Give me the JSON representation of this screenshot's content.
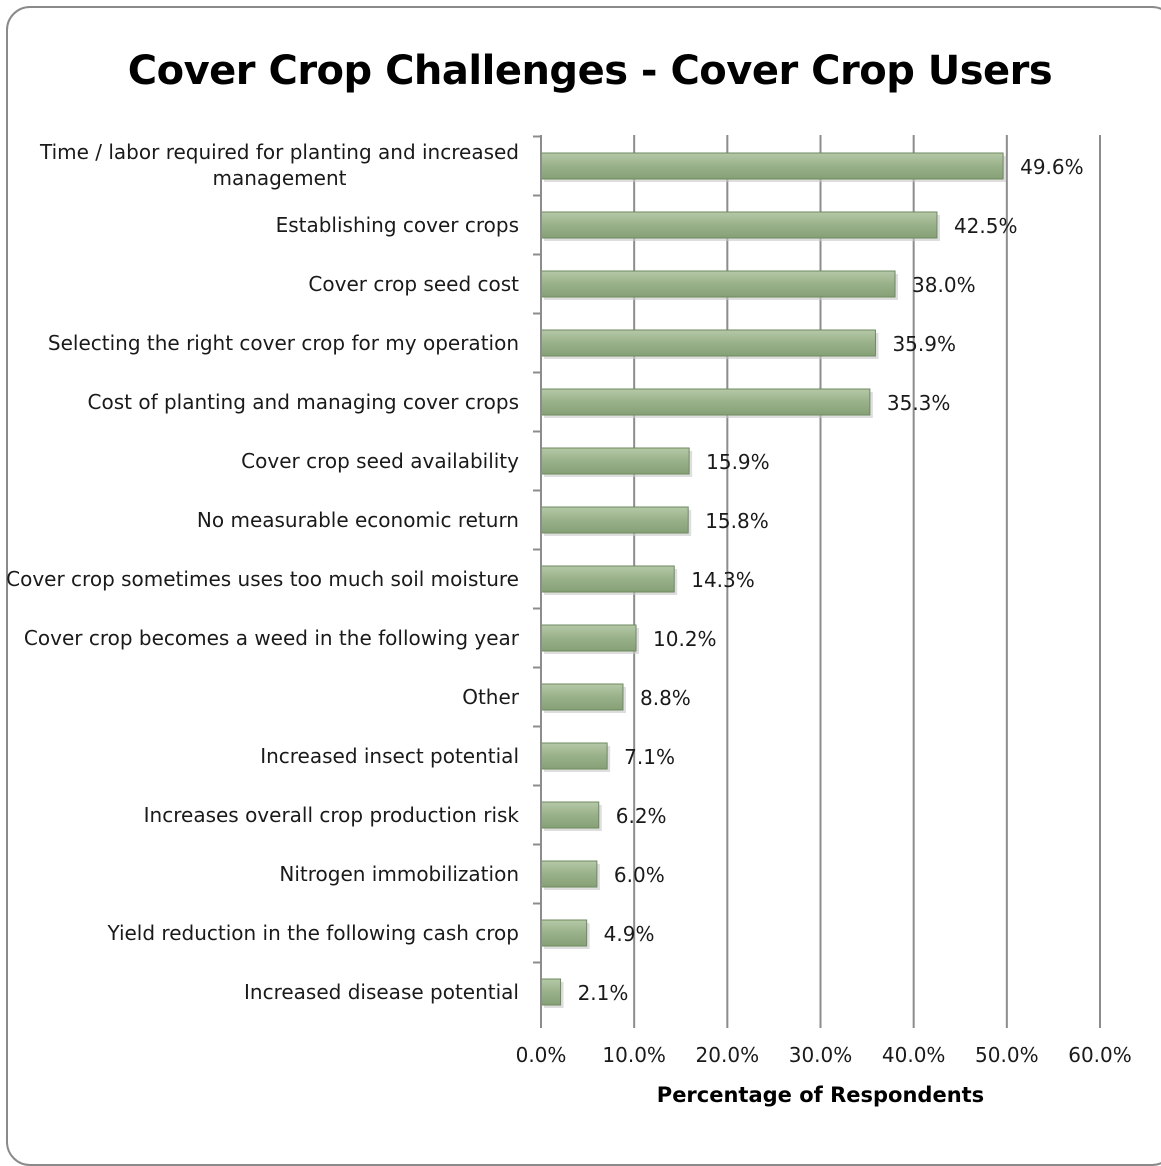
{
  "chart_data": {
    "type": "bar",
    "orientation": "horizontal",
    "title": "Cover Crop Challenges - Cover Crop Users",
    "xlabel": "Percentage of Respondents",
    "ylabel": "",
    "xlim": [
      0,
      60
    ],
    "x_ticks": [
      "0.0%",
      "10.0%",
      "20.0%",
      "30.0%",
      "40.0%",
      "50.0%",
      "60.0%"
    ],
    "grid": "vertical",
    "bar_color": "#9bb38c",
    "bar_edge_color": "#6e8a5f",
    "categories": [
      [
        "Time / labor required for planting and increased",
        "management"
      ],
      [
        "Establishing cover crops"
      ],
      [
        "Cover crop seed cost"
      ],
      [
        "Selecting the right cover crop for my operation"
      ],
      [
        "Cost of planting and managing cover crops"
      ],
      [
        "Cover crop seed availability"
      ],
      [
        "No measurable economic return"
      ],
      [
        "Cover crop sometimes uses too much soil moisture"
      ],
      [
        "Cover crop becomes a weed in the following year"
      ],
      [
        "Other"
      ],
      [
        "Increased insect potential"
      ],
      [
        "Increases overall crop production risk"
      ],
      [
        "Nitrogen immobilization"
      ],
      [
        "Yield reduction in the following cash crop"
      ],
      [
        "Increased disease potential"
      ]
    ],
    "values": [
      49.6,
      42.5,
      38.0,
      35.9,
      35.3,
      15.9,
      15.8,
      14.3,
      10.2,
      8.8,
      7.1,
      6.2,
      6.0,
      4.9,
      2.1
    ],
    "value_labels": [
      "49.6%",
      "42.5%",
      "38.0%",
      "35.9%",
      "35.3%",
      "15.9%",
      "15.8%",
      "14.3%",
      "10.2%",
      "8.8%",
      "7.1%",
      "6.2%",
      "6.0%",
      "4.9%",
      "2.1%"
    ]
  }
}
